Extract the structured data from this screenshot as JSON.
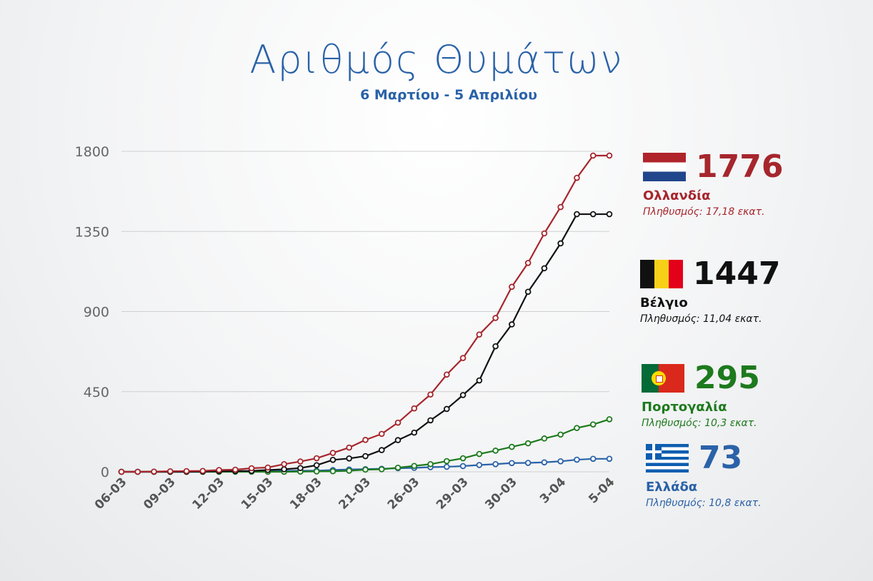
{
  "title": "Αριθμός Θυμάτων",
  "subtitle": "6 Μαρτίου - 5 Απριλίου",
  "legend": [
    {
      "value": "1776",
      "country": "Ολλανδία",
      "population": "Πληθυσμός: 17,18 εκατ.",
      "color": "#a6262d",
      "flag_icon": "netherlands-flag-icon"
    },
    {
      "value": "1447",
      "country": "Βέλγιο",
      "population": "Πληθυσμός: 11,04 εκατ.",
      "color": "#111111",
      "flag_icon": "belgium-flag-icon"
    },
    {
      "value": "295",
      "country": "Πορτογαλία",
      "population": "Πληθυσμός: 10,3 εκατ.",
      "color": "#1d7a1d",
      "flag_icon": "portugal-flag-icon"
    },
    {
      "value": "73",
      "country": "Ελλάδα",
      "population": "Πληθυσμός: 10,8 εκατ.",
      "color": "#2a62a8",
      "flag_icon": "greece-flag-icon"
    }
  ],
  "chart_data": {
    "type": "line",
    "title": "Αριθμός Θυμάτων",
    "subtitle": "6 Μαρτίου - 5 Απριλίου",
    "xlabel": "",
    "ylabel": "",
    "ylim": [
      0,
      1800
    ],
    "yticks": [
      0,
      450,
      900,
      1350,
      1800
    ],
    "grid": true,
    "x_tick_labels": [
      "06-03",
      "09-03",
      "12-03",
      "15-03",
      "18-03",
      "21-03",
      "26-03",
      "29-03",
      "30-03",
      "3-04",
      "5-04"
    ],
    "x_tick_positions": [
      0,
      3,
      6,
      9,
      12,
      15,
      18,
      21,
      24,
      27,
      30
    ],
    "x_points": 31,
    "series": [
      {
        "name": "Ολλανδία",
        "color": "#a6262d",
        "values": [
          0,
          0,
          1,
          3,
          4,
          5,
          10,
          12,
          20,
          24,
          43,
          58,
          76,
          106,
          136,
          179,
          213,
          276,
          356,
          434,
          546,
          639,
          771,
          864,
          1039,
          1173,
          1339,
          1487,
          1651,
          1776,
          1776
        ]
      },
      {
        "name": "Βέλγιο",
        "color": "#111111",
        "values": [
          0,
          0,
          0,
          0,
          0,
          1,
          3,
          4,
          5,
          10,
          14,
          21,
          37,
          67,
          75,
          88,
          122,
          178,
          220,
          289,
          353,
          431,
          513,
          705,
          828,
          1011,
          1143,
          1283,
          1447,
          1447,
          1447
        ]
      },
      {
        "name": "Πορτογαλία",
        "color": "#1d7a1d",
        "values": [
          0,
          0,
          0,
          0,
          0,
          0,
          0,
          0,
          0,
          0,
          0,
          1,
          2,
          3,
          6,
          12,
          14,
          23,
          33,
          43,
          60,
          76,
          100,
          119,
          140,
          160,
          187,
          209,
          246,
          266,
          295
        ]
      },
      {
        "name": "Ελλάδα",
        "color": "#2a62a8",
        "values": [
          0,
          0,
          0,
          0,
          0,
          0,
          1,
          3,
          4,
          4,
          5,
          6,
          6,
          10,
          13,
          15,
          17,
          20,
          22,
          26,
          28,
          32,
          38,
          43,
          49,
          50,
          53,
          59,
          68,
          73,
          73
        ]
      }
    ]
  }
}
